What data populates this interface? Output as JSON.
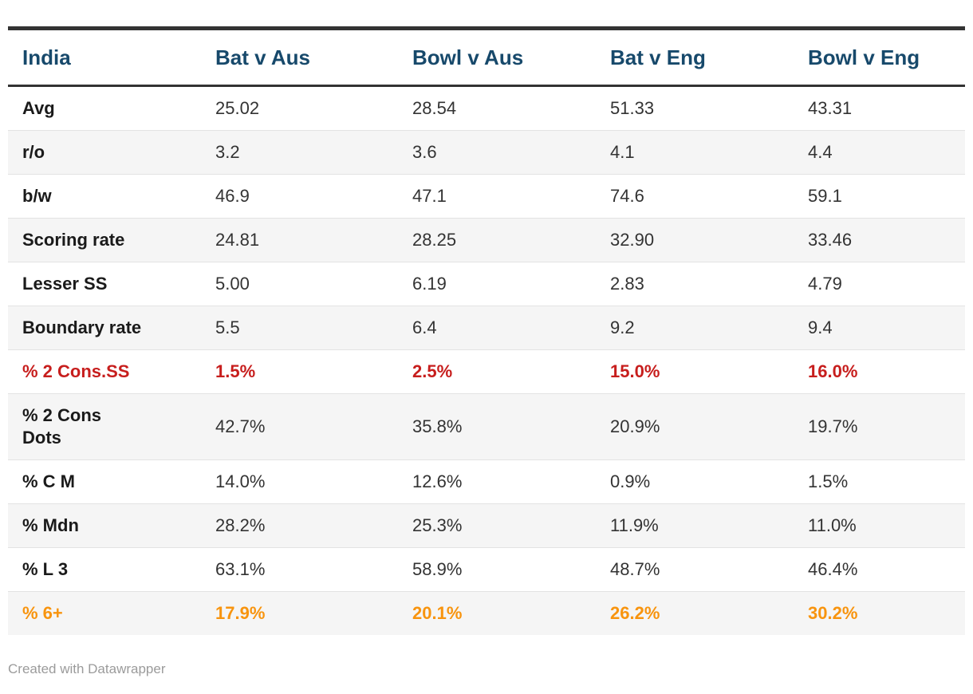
{
  "chart_data": {
    "type": "table",
    "title": "India",
    "columns": [
      "India",
      "Bat v Aus",
      "Bowl v Aus",
      "Bat v Eng",
      "Bowl v Eng"
    ],
    "rows": [
      {
        "label": "Avg",
        "values": [
          "25.02",
          "28.54",
          "51.33",
          "43.31"
        ],
        "style": "normal"
      },
      {
        "label": "r/o",
        "values": [
          "3.2",
          "3.6",
          "4.1",
          "4.4"
        ],
        "style": "normal"
      },
      {
        "label": "b/w",
        "values": [
          "46.9",
          "47.1",
          "74.6",
          "59.1"
        ],
        "style": "normal"
      },
      {
        "label": "Scoring rate",
        "values": [
          "24.81",
          "28.25",
          "32.90",
          "33.46"
        ],
        "style": "normal"
      },
      {
        "label": "Lesser SS",
        "values": [
          "5.00",
          "6.19",
          "2.83",
          "4.79"
        ],
        "style": "normal"
      },
      {
        "label": "Boundary rate",
        "values": [
          "5.5",
          "6.4",
          "9.2",
          "9.4"
        ],
        "style": "normal"
      },
      {
        "label": "% 2 Cons.SS",
        "values": [
          "1.5%",
          "2.5%",
          "15.0%",
          "16.0%"
        ],
        "style": "red"
      },
      {
        "label": "% 2 Cons\nDots",
        "values": [
          "42.7%",
          "35.8%",
          "20.9%",
          "19.7%"
        ],
        "style": "normal"
      },
      {
        "label": "% C M",
        "values": [
          "14.0%",
          "12.6%",
          "0.9%",
          "1.5%"
        ],
        "style": "normal"
      },
      {
        "label": "% Mdn",
        "values": [
          "28.2%",
          "25.3%",
          "11.9%",
          "11.0%"
        ],
        "style": "normal"
      },
      {
        "label": "% L 3",
        "values": [
          "63.1%",
          "58.9%",
          "48.7%",
          "46.4%"
        ],
        "style": "normal"
      },
      {
        "label": "% 6+",
        "values": [
          "17.9%",
          "20.1%",
          "26.2%",
          "30.2%"
        ],
        "style": "orange"
      }
    ],
    "layout_hints": {
      "striped_rows": true,
      "header_position": "top",
      "highlight_rows": [
        "% 2 Cons.SS",
        "% 6+"
      ]
    },
    "colors": {
      "header_text": "#17496b",
      "highlight_red": "#c71e1d",
      "highlight_orange": "#f8940e",
      "row_stripe": "#f5f5f5",
      "border_dark": "#333333",
      "row_divider": "#e3e3e3",
      "footer_text": "#9b9b9b"
    }
  },
  "footer": {
    "credit": "Created with Datawrapper"
  }
}
